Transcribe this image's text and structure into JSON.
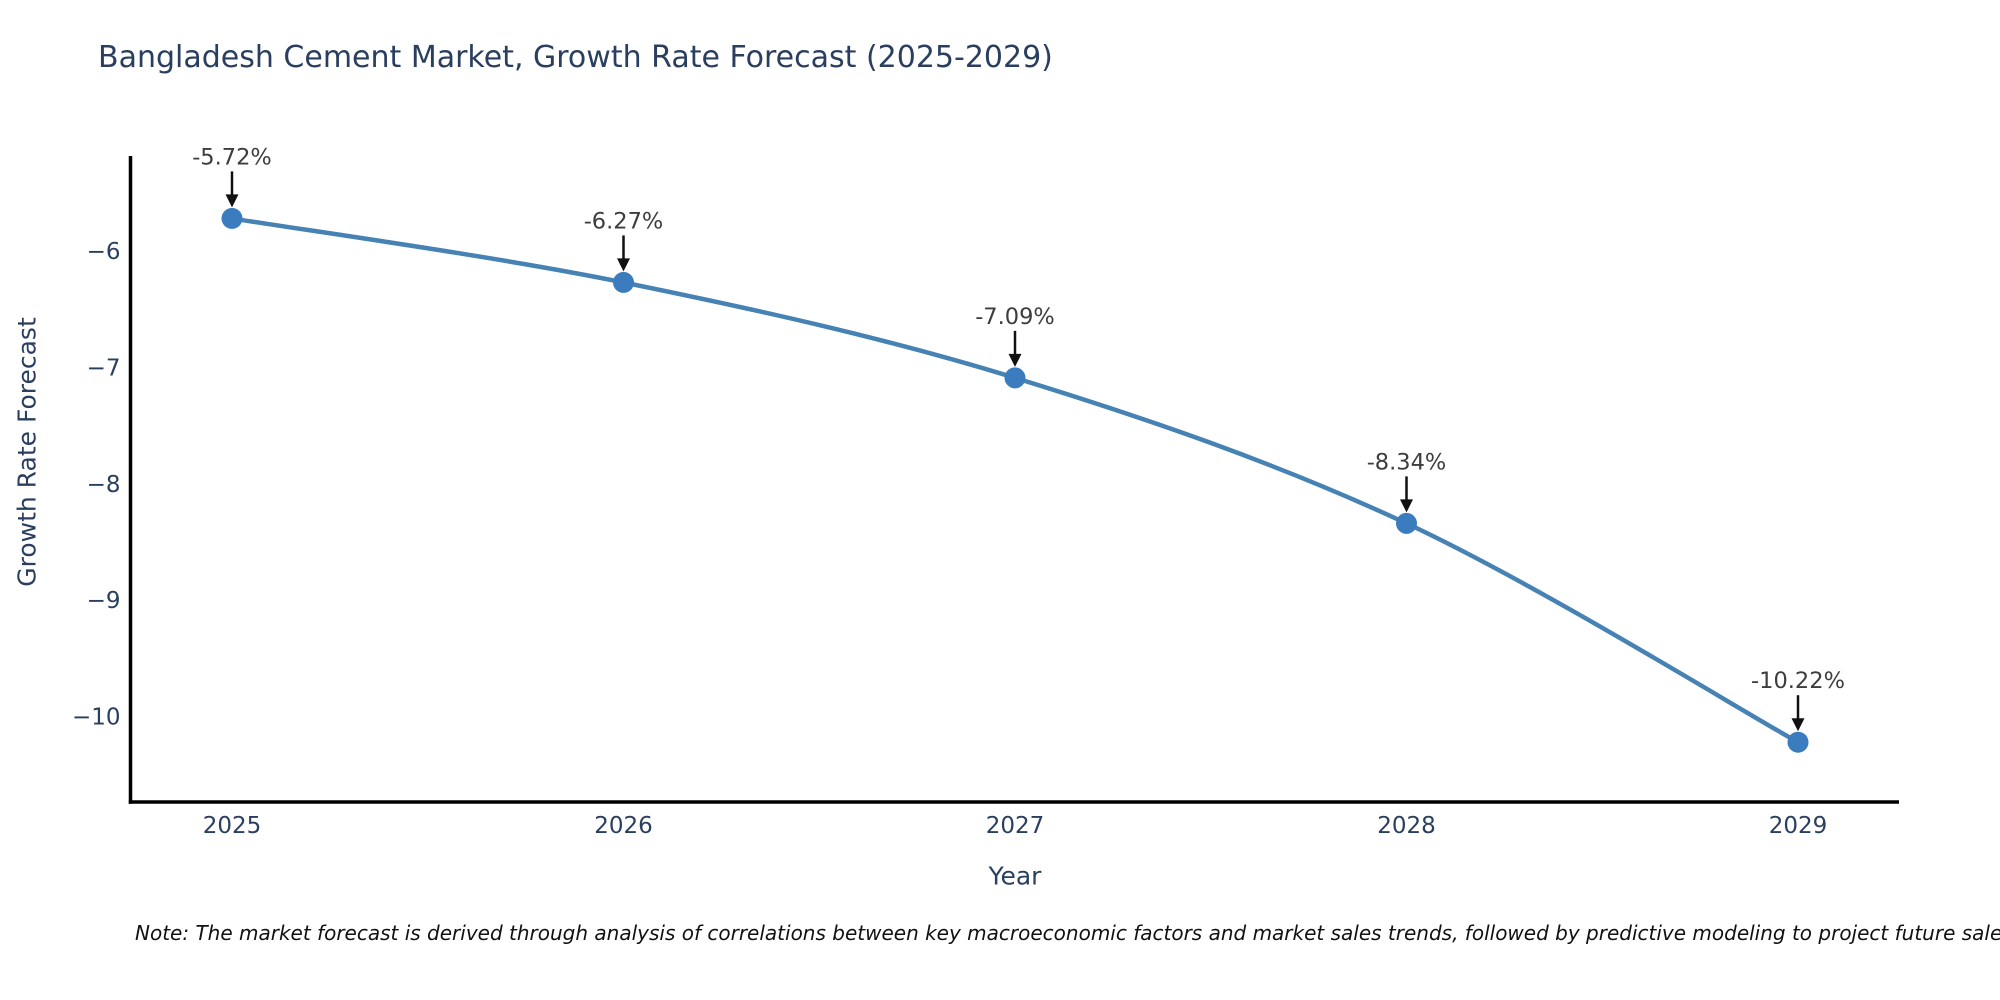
{
  "title": "Bangladesh Cement Market, Growth Rate Forecast (2025-2029)",
  "note": "Note: The market forecast is derived through analysis of correlations between key macroeconomic factors and market sales trends, followed by predictive modeling to project future sales",
  "chart_data": {
    "type": "line",
    "title": "Bangladesh Cement Market, Growth Rate Forecast (2025-2029)",
    "xlabel": "Year",
    "ylabel": "Growth Rate Forecast",
    "x": [
      2025,
      2026,
      2027,
      2028,
      2029
    ],
    "y": [
      -5.72,
      -6.27,
      -7.09,
      -8.34,
      -10.22
    ],
    "point_labels": [
      "-5.72%",
      "-6.27%",
      "-7.09%",
      "-8.34%",
      "-10.22%"
    ],
    "xtick_labels": [
      "2025",
      "2026",
      "2027",
      "2028",
      "2029"
    ],
    "ytick_values": [
      -6,
      -7,
      -8,
      -9,
      -10
    ],
    "ytick_labels": [
      "−6",
      "−7",
      "−8",
      "−9",
      "−10"
    ],
    "ylim": [
      -10.74,
      -5.2
    ],
    "grid": false,
    "legend_position": "none",
    "line_shape": "spline",
    "line_color": "#4682b4",
    "marker_color": "#3a7cbe",
    "arrow_color": "#111111",
    "annotation_text_color": "#3d3d3d",
    "axis_line_color": "#000000",
    "tick_text_color": "#2a3f5f"
  }
}
